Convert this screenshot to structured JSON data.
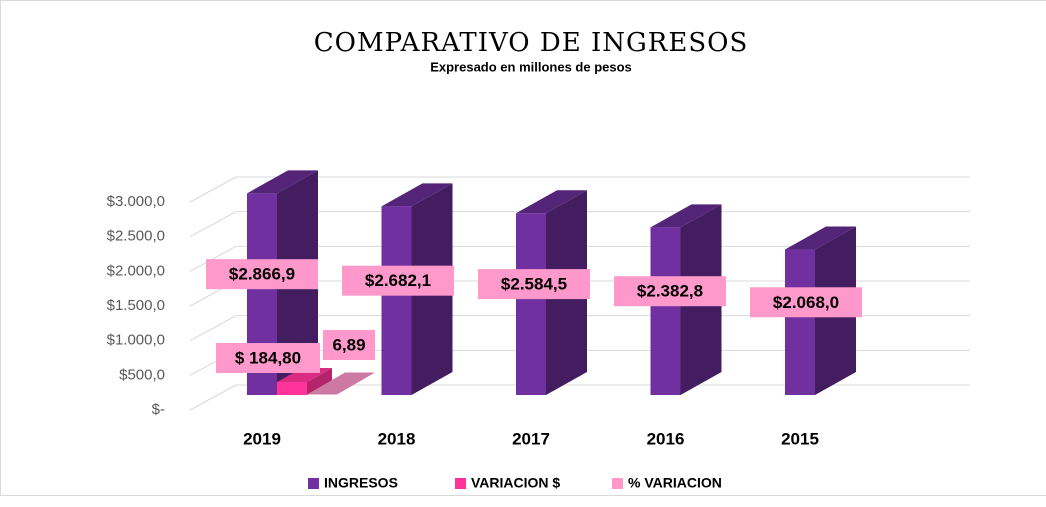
{
  "chart_data": {
    "type": "bar3d",
    "title": "COMPARATIVO DE INGRESOS",
    "subtitle": "Expresado en millones de pesos",
    "categories": [
      "2019",
      "2018",
      "2017",
      "2016",
      "2015"
    ],
    "series": [
      {
        "name": "INGRESOS",
        "color": "#7030a0",
        "values": [
          2866.9,
          2682.1,
          2584.5,
          2382.8,
          2068.0
        ],
        "value_labels": [
          "$2.866,9",
          "$2.682,1",
          "$2.584,5",
          "$2.382,8",
          "$2.068,0"
        ]
      },
      {
        "name": "VARIACION $",
        "color": "#ff3399",
        "values": [
          184.8,
          null,
          null,
          null,
          null
        ],
        "value_labels": [
          "$ 184,80",
          null,
          null,
          null,
          null
        ]
      },
      {
        "name": "% VARIACION",
        "color": "#ff99cc",
        "values": [
          6.89,
          null,
          null,
          null,
          null
        ],
        "value_labels": [
          "6,89",
          null,
          null,
          null,
          null
        ]
      }
    ],
    "ylim": [
      0,
      3000
    ],
    "yticks": [
      {
        "value": 0,
        "label": "$-"
      },
      {
        "value": 500,
        "label": "$500,0"
      },
      {
        "value": 1000,
        "label": "$1.000,0"
      },
      {
        "value": 1500,
        "label": "$1.500,0"
      },
      {
        "value": 2000,
        "label": "$2.000,0"
      },
      {
        "value": 2500,
        "label": "$2.500,0"
      },
      {
        "value": 3000,
        "label": "$3.000,0"
      }
    ],
    "grid": true,
    "legend": "bottom"
  }
}
